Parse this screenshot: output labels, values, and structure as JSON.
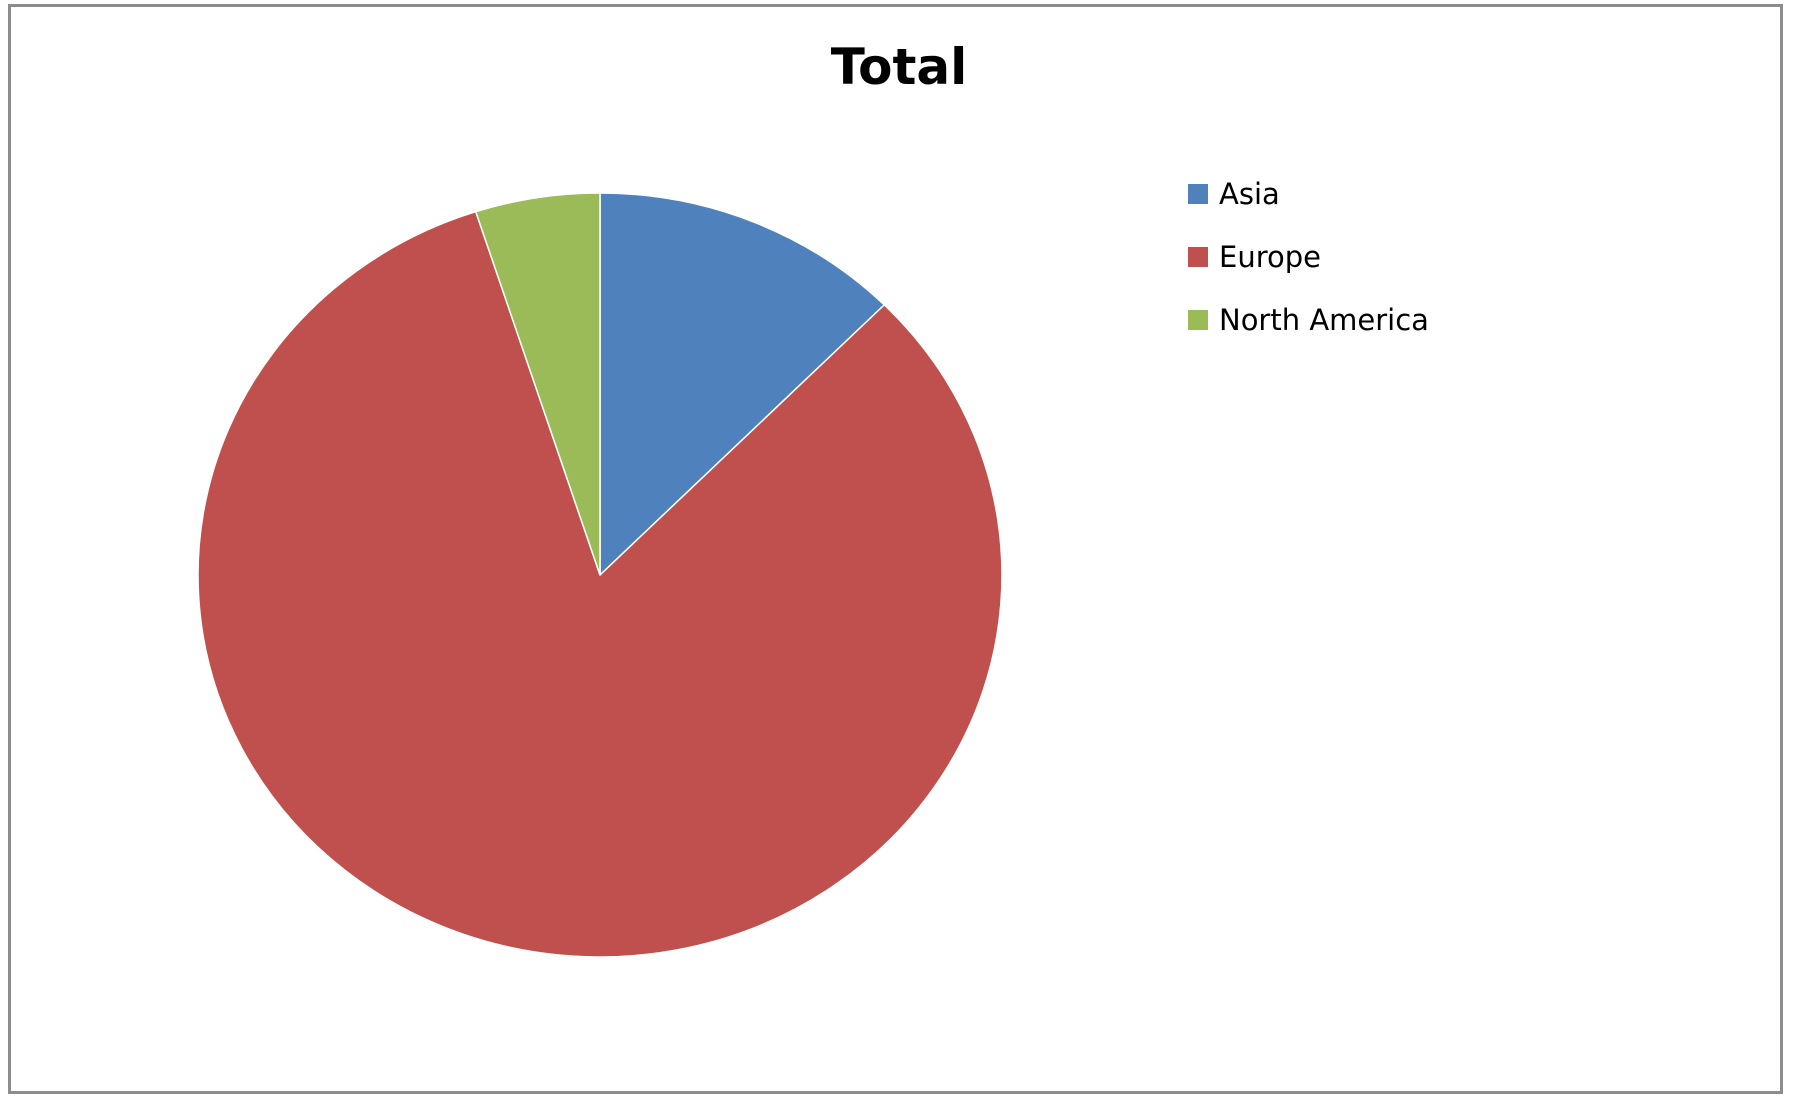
{
  "chart_data": {
    "type": "pie",
    "title": "Total",
    "categories": [
      "Asia",
      "Europe",
      "North America"
    ],
    "values": [
      12.5,
      82.5,
      5.0
    ],
    "colors": [
      "#4F81BD",
      "#C0504D",
      "#9BBB59"
    ],
    "start_angle_deg": 0,
    "direction": "clockwise",
    "legend_position": "right"
  }
}
